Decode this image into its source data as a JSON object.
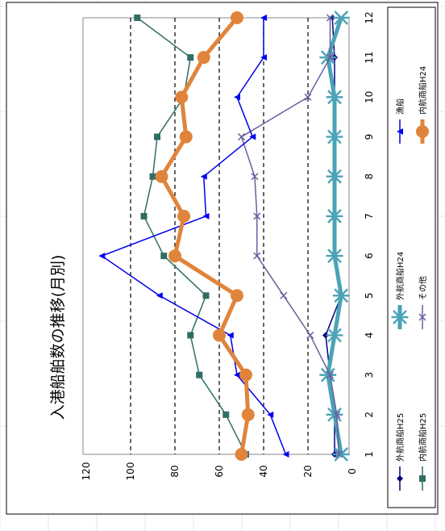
{
  "chart_data": {
    "type": "line",
    "orientation": "rotated-90-clockwise",
    "title": "入港船舶数の推移(月別)",
    "xlabel": "",
    "ylabel": "",
    "categories": [
      "1",
      "2",
      "3",
      "4",
      "5",
      "6",
      "7",
      "8",
      "9",
      "10",
      "11",
      "12"
    ],
    "ylim": [
      0,
      120
    ],
    "yticks": [
      "0",
      "20",
      "40",
      "60",
      "80",
      "100",
      "120"
    ],
    "grid": "dashed at 20,40,60,80,100",
    "legend": "bottom (rotated)",
    "series": [
      {
        "name": "外航商船H25",
        "color": "#000080",
        "marker": "diamond",
        "values": [
          8,
          8,
          10,
          12,
          5,
          8,
          8,
          8,
          8,
          8,
          8,
          9
        ]
      },
      {
        "name": "内航商船H25",
        "color": "#2f6e64",
        "marker": "square",
        "values": [
          48,
          57,
          69,
          73,
          66,
          85,
          94,
          90,
          88,
          76,
          73,
          97
        ]
      },
      {
        "name": "外航商船H24",
        "color": "#4ba3b6",
        "marker": "asterisk",
        "values": [
          5,
          8,
          11,
          8,
          5,
          8,
          8,
          8,
          8,
          8,
          11,
          5
        ]
      },
      {
        "name": "その他",
        "color": "#6a5fa0",
        "marker": "x",
        "values": [
          6,
          7,
          10,
          19,
          31,
          43,
          43,
          44,
          50,
          20,
          10,
          10
        ]
      },
      {
        "name": "漁船",
        "color": "#0000ee",
        "marker": "triangle",
        "values": [
          30,
          37,
          52,
          55,
          87,
          113,
          66,
          67,
          45,
          52,
          40,
          40
        ]
      },
      {
        "name": "内航商船H24",
        "color": "#e0843c",
        "marker": "circle",
        "values": [
          50,
          47,
          48,
          60,
          52,
          80,
          76,
          86,
          75,
          77,
          67,
          52
        ]
      }
    ]
  }
}
